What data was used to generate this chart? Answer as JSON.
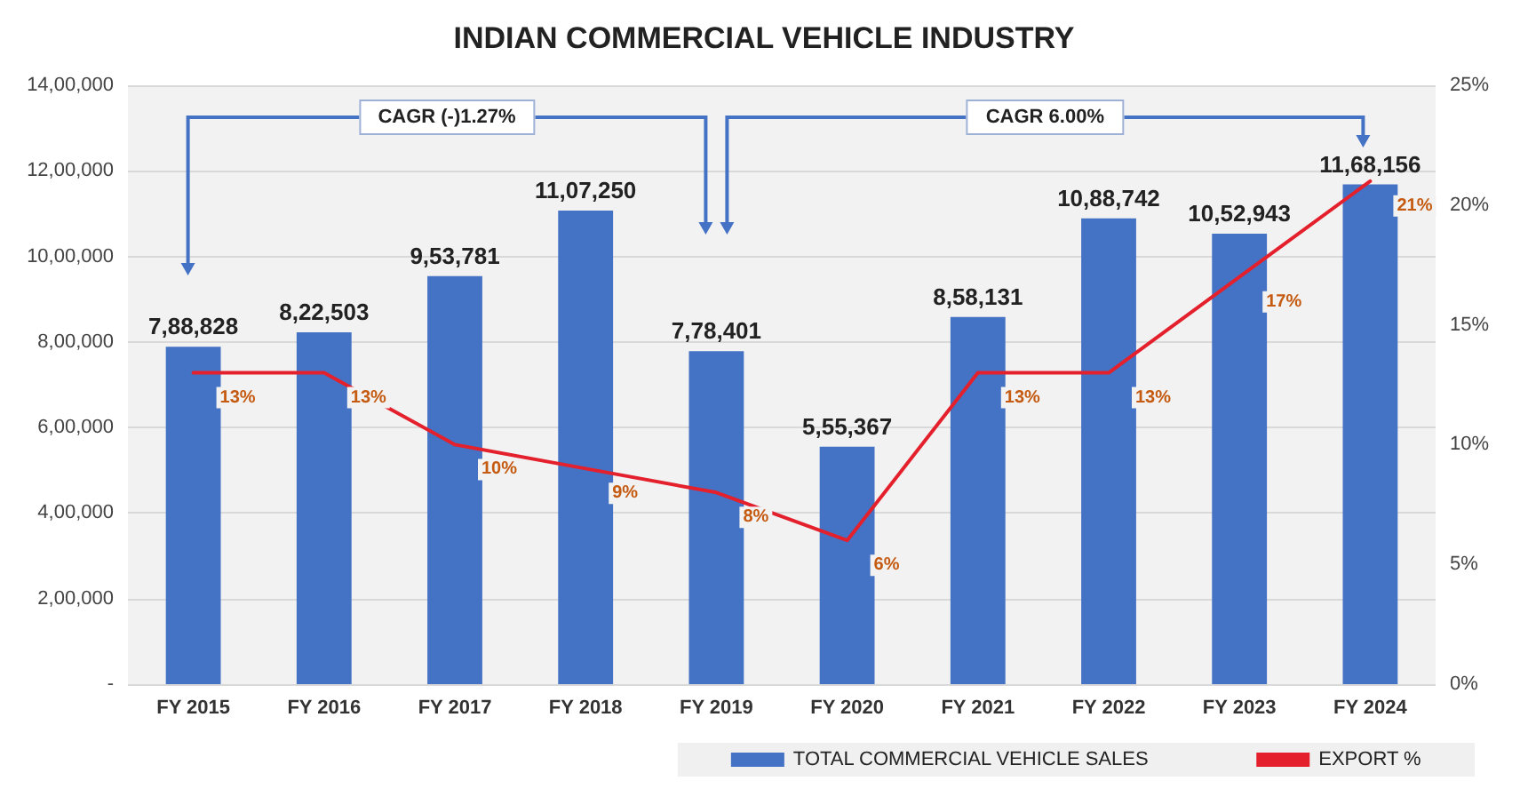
{
  "chart_data": {
    "type": "bar",
    "title": "INDIAN COMMERCIAL VEHICLE INDUSTRY",
    "categories": [
      "FY 2015",
      "FY 2016",
      "FY 2017",
      "FY 2018",
      "FY 2019",
      "FY 2020",
      "FY 2021",
      "FY 2022",
      "FY 2023",
      "FY 2024"
    ],
    "series": [
      {
        "name": "TOTAL COMMERCIAL VEHICLE SALES",
        "color": "#4472c4",
        "values": [
          788828,
          822503,
          953781,
          1107250,
          778401,
          555367,
          858131,
          1088742,
          1052943,
          1168156
        ],
        "value_labels": [
          "7,88,828",
          "8,22,503",
          "9,53,781",
          "11,07,250",
          "7,78,401",
          "5,55,367",
          "8,58,131",
          "10,88,742",
          "10,52,943",
          "11,68,156"
        ]
      },
      {
        "name": "EXPORT %",
        "type": "line",
        "axis": "y2",
        "color": "#e3202b",
        "values": [
          13,
          13,
          10,
          9,
          8,
          6,
          13,
          13,
          17,
          21
        ],
        "value_labels": [
          "13%",
          "13%",
          "10%",
          "9%",
          "8%",
          "6%",
          "13%",
          "13%",
          "17%",
          "21%"
        ]
      }
    ],
    "ylim": [
      0,
      1400000
    ],
    "yticks": [
      {
        "value": 0,
        "label": "-"
      },
      {
        "value": 200000,
        "label": "2,00,000"
      },
      {
        "value": 400000,
        "label": "4,00,000"
      },
      {
        "value": 600000,
        "label": "6,00,000"
      },
      {
        "value": 800000,
        "label": "8,00,000"
      },
      {
        "value": 1000000,
        "label": "10,00,000"
      },
      {
        "value": 1200000,
        "label": "12,00,000"
      },
      {
        "value": 1400000,
        "label": "14,00,000"
      }
    ],
    "y2lim": [
      0,
      25
    ],
    "y2ticks": [
      {
        "value": 0,
        "label": "0%"
      },
      {
        "value": 5,
        "label": "5%"
      },
      {
        "value": 10,
        "label": "10%"
      },
      {
        "value": 15,
        "label": "15%"
      },
      {
        "value": 20,
        "label": "20%"
      },
      {
        "value": 25,
        "label": "25%"
      }
    ],
    "annotations": [
      "CAGR (-)1.27%",
      "CAGR 6.00%"
    ],
    "grid": "y",
    "legend": "bottom right",
    "marker": "none",
    "line_style": "solid"
  }
}
